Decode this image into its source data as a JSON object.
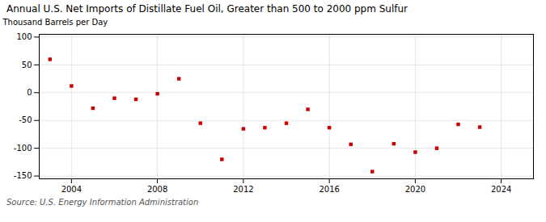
{
  "chart_data": {
    "type": "scatter",
    "title": "Annual U.S. Net Imports of Distillate Fuel Oil, Greater than 500 to 2000 ppm Sulfur",
    "ylabel": "Thousand Barrels per Day",
    "source": "Source: U.S. Energy Information Administration",
    "x": [
      2003,
      2004,
      2005,
      2006,
      2007,
      2008,
      2009,
      2010,
      2011,
      2012,
      2013,
      2014,
      2015,
      2016,
      2017,
      2018,
      2019,
      2020,
      2021,
      2022,
      2023
    ],
    "values": [
      60,
      12,
      -28,
      -10,
      -12,
      -2,
      25,
      -55,
      -120,
      -65,
      -63,
      -55,
      -30,
      -63,
      -93,
      -142,
      -92,
      -107,
      -100,
      -57,
      -62
    ],
    "color": "#cc0000",
    "marker": "square",
    "xlim": [
      2002.5,
      2025.5
    ],
    "ylim": [
      -155,
      105
    ],
    "xticks": [
      2004,
      2008,
      2012,
      2016,
      2020,
      2024
    ],
    "yticks": [
      -150,
      -100,
      -50,
      0,
      50,
      100
    ],
    "grid": true
  }
}
